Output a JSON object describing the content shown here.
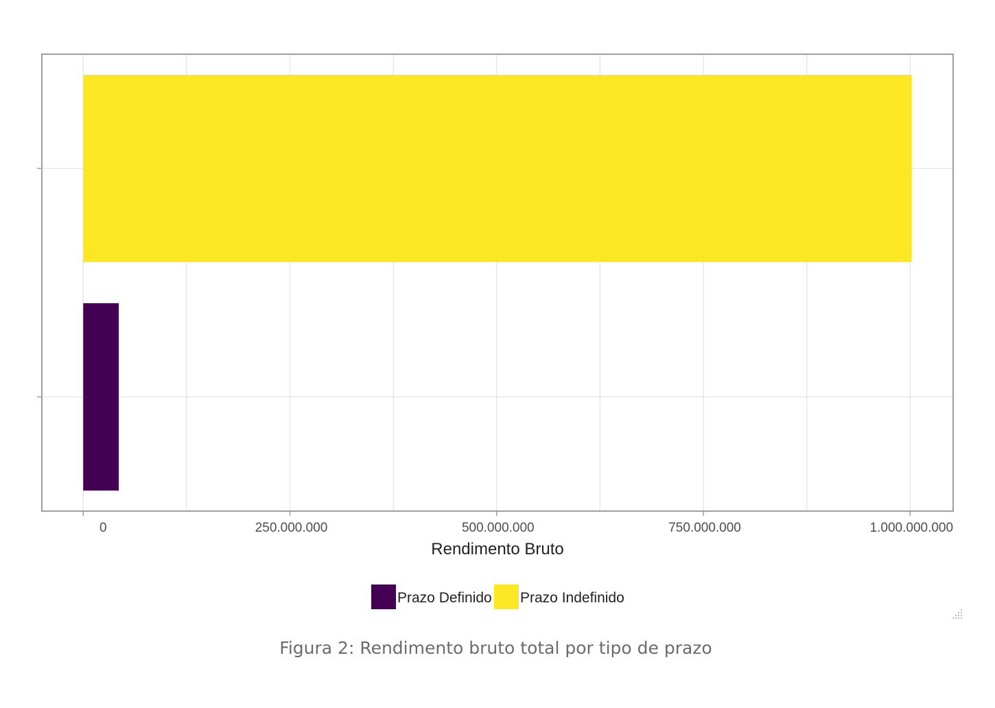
{
  "chart_data": {
    "type": "bar",
    "orientation": "horizontal",
    "xlabel": "Rendimento Bruto",
    "ylabel": "",
    "xlim": [
      -50000000,
      1052000000
    ],
    "xticks": [
      0,
      250000000,
      500000000,
      750000000,
      1000000000
    ],
    "xtick_labels": [
      "0",
      "250.000.000",
      "500.000.000",
      "750.000.000",
      "1.000.000.000"
    ],
    "grid": true,
    "legend_position": "bottom",
    "series": [
      {
        "name": "Prazo Indefinido",
        "value": 1002000000,
        "color": "#fde725"
      },
      {
        "name": "Prazo Definido",
        "value": 43000000,
        "color": "#440154"
      }
    ]
  },
  "caption": "Figura 2: Rendimento bruto total por tipo de prazo",
  "colors": {
    "panel_border": "#9e9e9e",
    "grid": "#e4e4e4"
  },
  "icons": {
    "resize_handle": "resize-grip-icon"
  }
}
